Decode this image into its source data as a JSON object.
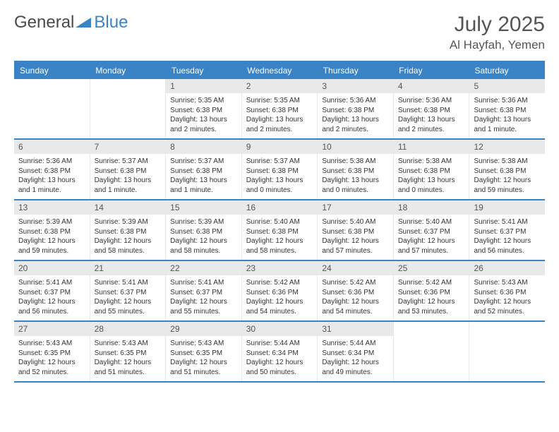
{
  "brand": {
    "word1": "General",
    "word2": "Blue",
    "accent_color": "#3a83c5",
    "text_color": "#4a4a4a"
  },
  "title": "July 2025",
  "location": "Al Hayfah, Yemen",
  "colors": {
    "header_bg": "#3a83c5",
    "header_fg": "#ffffff",
    "daynum_bg": "#e9e9e9",
    "rule": "#3a83c5"
  },
  "fonts": {
    "title_pt": 30,
    "location_pt": 17,
    "dow_pt": 12,
    "cell_pt": 10
  },
  "days_of_week": [
    "Sunday",
    "Monday",
    "Tuesday",
    "Wednesday",
    "Thursday",
    "Friday",
    "Saturday"
  ],
  "weeks": [
    [
      {
        "n": "",
        "sunrise": "",
        "sunset": "",
        "daylight": ""
      },
      {
        "n": "",
        "sunrise": "",
        "sunset": "",
        "daylight": ""
      },
      {
        "n": "1",
        "sunrise": "Sunrise: 5:35 AM",
        "sunset": "Sunset: 6:38 PM",
        "daylight": "Daylight: 13 hours and 2 minutes."
      },
      {
        "n": "2",
        "sunrise": "Sunrise: 5:35 AM",
        "sunset": "Sunset: 6:38 PM",
        "daylight": "Daylight: 13 hours and 2 minutes."
      },
      {
        "n": "3",
        "sunrise": "Sunrise: 5:36 AM",
        "sunset": "Sunset: 6:38 PM",
        "daylight": "Daylight: 13 hours and 2 minutes."
      },
      {
        "n": "4",
        "sunrise": "Sunrise: 5:36 AM",
        "sunset": "Sunset: 6:38 PM",
        "daylight": "Daylight: 13 hours and 2 minutes."
      },
      {
        "n": "5",
        "sunrise": "Sunrise: 5:36 AM",
        "sunset": "Sunset: 6:38 PM",
        "daylight": "Daylight: 13 hours and 1 minute."
      }
    ],
    [
      {
        "n": "6",
        "sunrise": "Sunrise: 5:36 AM",
        "sunset": "Sunset: 6:38 PM",
        "daylight": "Daylight: 13 hours and 1 minute."
      },
      {
        "n": "7",
        "sunrise": "Sunrise: 5:37 AM",
        "sunset": "Sunset: 6:38 PM",
        "daylight": "Daylight: 13 hours and 1 minute."
      },
      {
        "n": "8",
        "sunrise": "Sunrise: 5:37 AM",
        "sunset": "Sunset: 6:38 PM",
        "daylight": "Daylight: 13 hours and 1 minute."
      },
      {
        "n": "9",
        "sunrise": "Sunrise: 5:37 AM",
        "sunset": "Sunset: 6:38 PM",
        "daylight": "Daylight: 13 hours and 0 minutes."
      },
      {
        "n": "10",
        "sunrise": "Sunrise: 5:38 AM",
        "sunset": "Sunset: 6:38 PM",
        "daylight": "Daylight: 13 hours and 0 minutes."
      },
      {
        "n": "11",
        "sunrise": "Sunrise: 5:38 AM",
        "sunset": "Sunset: 6:38 PM",
        "daylight": "Daylight: 13 hours and 0 minutes."
      },
      {
        "n": "12",
        "sunrise": "Sunrise: 5:38 AM",
        "sunset": "Sunset: 6:38 PM",
        "daylight": "Daylight: 12 hours and 59 minutes."
      }
    ],
    [
      {
        "n": "13",
        "sunrise": "Sunrise: 5:39 AM",
        "sunset": "Sunset: 6:38 PM",
        "daylight": "Daylight: 12 hours and 59 minutes."
      },
      {
        "n": "14",
        "sunrise": "Sunrise: 5:39 AM",
        "sunset": "Sunset: 6:38 PM",
        "daylight": "Daylight: 12 hours and 58 minutes."
      },
      {
        "n": "15",
        "sunrise": "Sunrise: 5:39 AM",
        "sunset": "Sunset: 6:38 PM",
        "daylight": "Daylight: 12 hours and 58 minutes."
      },
      {
        "n": "16",
        "sunrise": "Sunrise: 5:40 AM",
        "sunset": "Sunset: 6:38 PM",
        "daylight": "Daylight: 12 hours and 58 minutes."
      },
      {
        "n": "17",
        "sunrise": "Sunrise: 5:40 AM",
        "sunset": "Sunset: 6:38 PM",
        "daylight": "Daylight: 12 hours and 57 minutes."
      },
      {
        "n": "18",
        "sunrise": "Sunrise: 5:40 AM",
        "sunset": "Sunset: 6:37 PM",
        "daylight": "Daylight: 12 hours and 57 minutes."
      },
      {
        "n": "19",
        "sunrise": "Sunrise: 5:41 AM",
        "sunset": "Sunset: 6:37 PM",
        "daylight": "Daylight: 12 hours and 56 minutes."
      }
    ],
    [
      {
        "n": "20",
        "sunrise": "Sunrise: 5:41 AM",
        "sunset": "Sunset: 6:37 PM",
        "daylight": "Daylight: 12 hours and 56 minutes."
      },
      {
        "n": "21",
        "sunrise": "Sunrise: 5:41 AM",
        "sunset": "Sunset: 6:37 PM",
        "daylight": "Daylight: 12 hours and 55 minutes."
      },
      {
        "n": "22",
        "sunrise": "Sunrise: 5:41 AM",
        "sunset": "Sunset: 6:37 PM",
        "daylight": "Daylight: 12 hours and 55 minutes."
      },
      {
        "n": "23",
        "sunrise": "Sunrise: 5:42 AM",
        "sunset": "Sunset: 6:36 PM",
        "daylight": "Daylight: 12 hours and 54 minutes."
      },
      {
        "n": "24",
        "sunrise": "Sunrise: 5:42 AM",
        "sunset": "Sunset: 6:36 PM",
        "daylight": "Daylight: 12 hours and 54 minutes."
      },
      {
        "n": "25",
        "sunrise": "Sunrise: 5:42 AM",
        "sunset": "Sunset: 6:36 PM",
        "daylight": "Daylight: 12 hours and 53 minutes."
      },
      {
        "n": "26",
        "sunrise": "Sunrise: 5:43 AM",
        "sunset": "Sunset: 6:36 PM",
        "daylight": "Daylight: 12 hours and 52 minutes."
      }
    ],
    [
      {
        "n": "27",
        "sunrise": "Sunrise: 5:43 AM",
        "sunset": "Sunset: 6:35 PM",
        "daylight": "Daylight: 12 hours and 52 minutes."
      },
      {
        "n": "28",
        "sunrise": "Sunrise: 5:43 AM",
        "sunset": "Sunset: 6:35 PM",
        "daylight": "Daylight: 12 hours and 51 minutes."
      },
      {
        "n": "29",
        "sunrise": "Sunrise: 5:43 AM",
        "sunset": "Sunset: 6:35 PM",
        "daylight": "Daylight: 12 hours and 51 minutes."
      },
      {
        "n": "30",
        "sunrise": "Sunrise: 5:44 AM",
        "sunset": "Sunset: 6:34 PM",
        "daylight": "Daylight: 12 hours and 50 minutes."
      },
      {
        "n": "31",
        "sunrise": "Sunrise: 5:44 AM",
        "sunset": "Sunset: 6:34 PM",
        "daylight": "Daylight: 12 hours and 49 minutes."
      },
      {
        "n": "",
        "sunrise": "",
        "sunset": "",
        "daylight": ""
      },
      {
        "n": "",
        "sunrise": "",
        "sunset": "",
        "daylight": ""
      }
    ]
  ]
}
